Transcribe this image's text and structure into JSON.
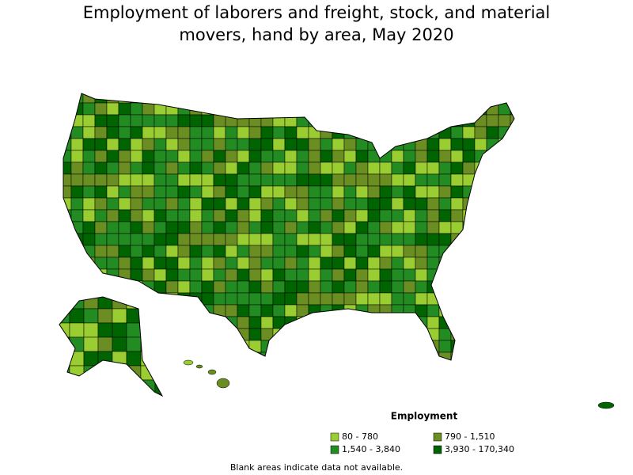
{
  "title": "Employment of laborers and freight, stock, and material movers, hand by area, May 2020",
  "legend": {
    "title": "Employment",
    "items": [
      {
        "label": "80 - 780",
        "color": "#9acd32"
      },
      {
        "label": "790 - 1,510",
        "color": "#6b8e23"
      },
      {
        "label": "1,540 - 3,840",
        "color": "#228b22"
      },
      {
        "label": "3,930 - 170,340",
        "color": "#006400"
      }
    ]
  },
  "footnote": "Blank areas indicate data not available."
}
